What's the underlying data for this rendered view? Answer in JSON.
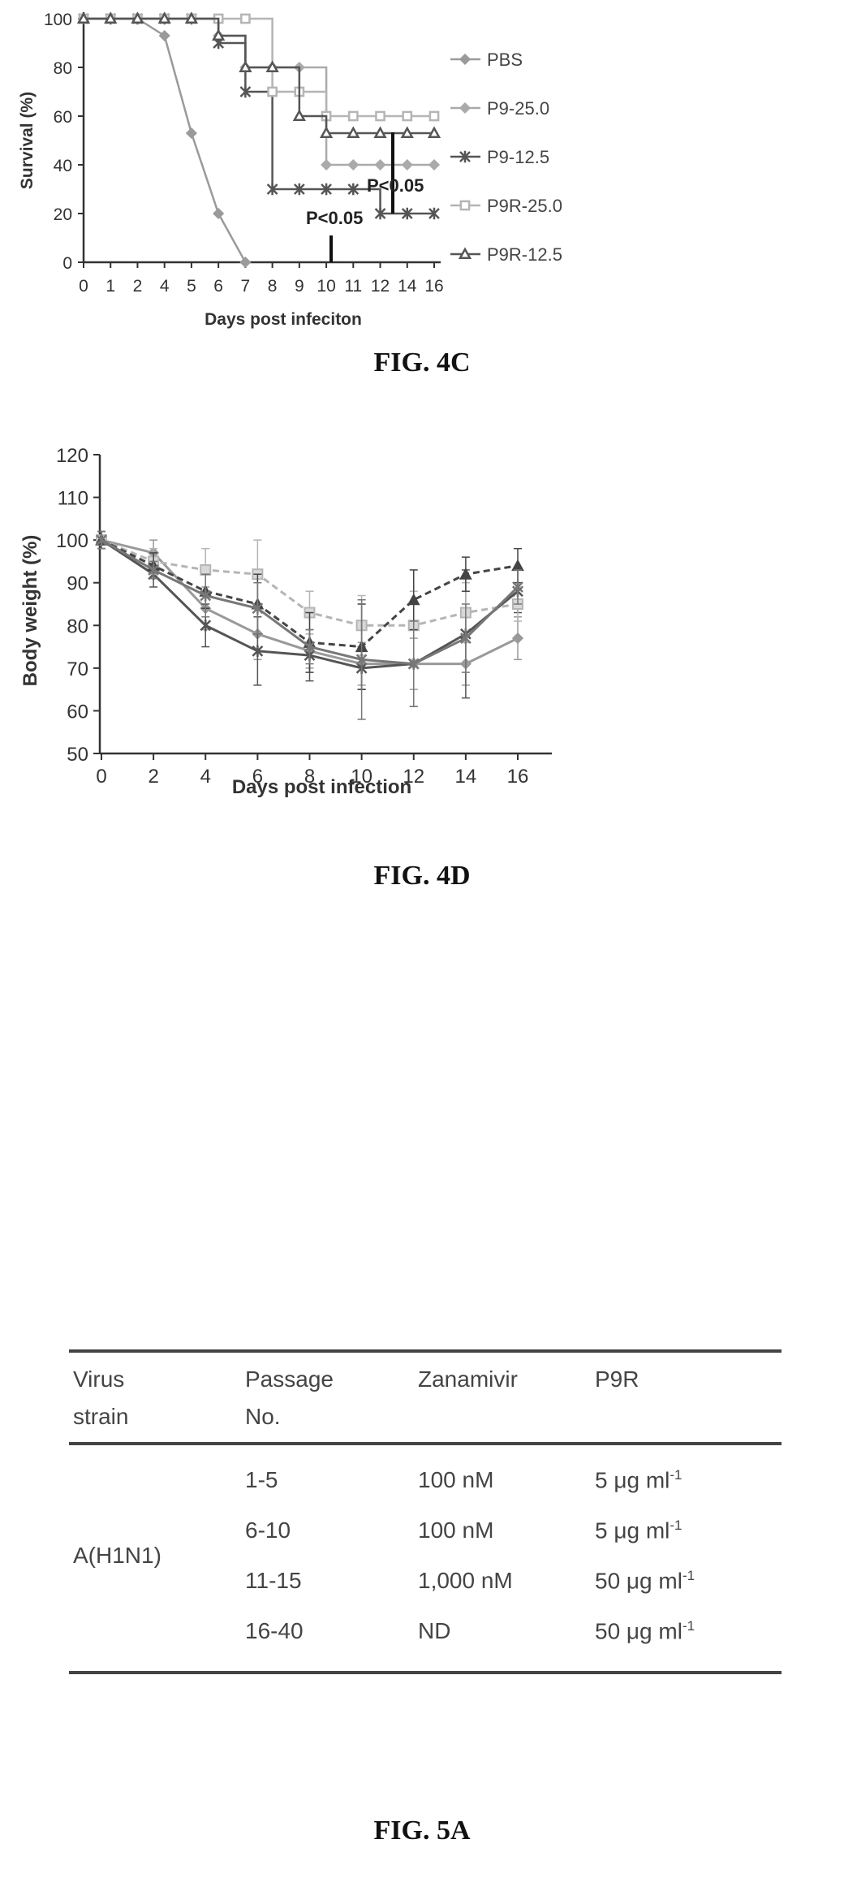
{
  "fig4c": {
    "caption": "FIG. 4C",
    "xlabel": "Days post infeciton",
    "ylabel": "Survival (%)",
    "annotations": [
      "P<0.05",
      "P<0.05"
    ]
  },
  "fig4d": {
    "caption": "FIG. 4D",
    "xlabel": "Days post infection",
    "ylabel": "Body weight (%)"
  },
  "fig5a": {
    "caption": "FIG. 5A",
    "headers": [
      [
        "Virus",
        "strain"
      ],
      [
        "Passage",
        "No."
      ],
      [
        "Zanamivir",
        ""
      ],
      [
        "P9R",
        ""
      ]
    ],
    "strain": "A(H1N1)",
    "rows": [
      {
        "passage": "1-5",
        "zanamivir": "100 nM",
        "p9r_value": "5 μg ml",
        "p9r_exp": "-1"
      },
      {
        "passage": "6-10",
        "zanamivir": "100 nM",
        "p9r_value": "5 μg ml",
        "p9r_exp": "-1"
      },
      {
        "passage": "11-15",
        "zanamivir": "1,000 nM",
        "p9r_value": "50 μg ml",
        "p9r_exp": "-1"
      },
      {
        "passage": "16-40",
        "zanamivir": "ND",
        "p9r_value": "50 μg ml",
        "p9r_exp": "-1"
      }
    ]
  },
  "chart_data": [
    {
      "type": "line",
      "xlabel": "Days post infeciton",
      "ylabel": "Survival (%)",
      "x_ticks": [
        "0",
        "1",
        "2",
        "4",
        "5",
        "6",
        "7",
        "8",
        "9",
        "10",
        "11",
        "12",
        "14",
        "16"
      ],
      "ylim": [
        0,
        100
      ],
      "y_ticks": [
        0,
        20,
        40,
        60,
        80,
        100
      ],
      "legend_position": "right",
      "series": [
        {
          "name": "PBS",
          "marker": "diamond",
          "color": "#9a9a9a",
          "values": [
            100,
            100,
            100,
            93,
            53,
            20,
            0,
            null,
            null,
            null,
            null,
            null,
            null,
            null
          ]
        },
        {
          "name": "P9-25.0",
          "marker": "diamond",
          "color": "#aaaaaa",
          "values": [
            100,
            100,
            100,
            100,
            100,
            93,
            80,
            80,
            80,
            40,
            40,
            40,
            40,
            40
          ]
        },
        {
          "name": "P9-12.5",
          "marker": "star",
          "color": "#555555",
          "values": [
            100,
            100,
            100,
            100,
            100,
            90,
            70,
            30,
            30,
            30,
            30,
            20,
            20,
            20
          ]
        },
        {
          "name": "P9R-25.0",
          "marker": "square",
          "color": "#b5b5b5",
          "values": [
            100,
            100,
            100,
            100,
            100,
            100,
            100,
            70,
            70,
            60,
            60,
            60,
            60,
            60
          ]
        },
        {
          "name": "P9R-12.5",
          "marker": "triangle",
          "color": "#555555",
          "values": [
            100,
            100,
            100,
            100,
            100,
            93,
            80,
            80,
            60,
            53,
            53,
            53,
            53,
            53
          ]
        }
      ],
      "annotations": [
        "P<0.05",
        "P<0.05"
      ]
    },
    {
      "type": "line",
      "xlabel": "Days post infection",
      "ylabel": "Body weight (%)",
      "x": [
        0,
        2,
        4,
        6,
        8,
        10,
        12,
        14,
        16
      ],
      "ylim": [
        50,
        120
      ],
      "y_ticks": [
        50,
        60,
        70,
        80,
        90,
        100,
        110,
        120
      ],
      "error_bars": true,
      "series": [
        {
          "marker": "diamond",
          "style": "solid",
          "color": "#999999",
          "values": [
            100,
            97,
            84,
            78,
            74,
            71,
            71,
            71,
            77
          ],
          "err": [
            2,
            3,
            5,
            6,
            4,
            5,
            6,
            5,
            5
          ]
        },
        {
          "marker": "star",
          "style": "solid",
          "color": "#555555",
          "values": [
            100,
            92,
            80,
            74,
            73,
            70,
            71,
            78,
            88
          ],
          "err": [
            2,
            3,
            5,
            8,
            6,
            5,
            10,
            15,
            5
          ]
        },
        {
          "marker": "square",
          "style": "dashed",
          "color": "#b5b5b5",
          "values": [
            100,
            95,
            93,
            92,
            83,
            80,
            80,
            83,
            85
          ],
          "err": [
            2,
            3,
            5,
            8,
            5,
            7,
            8,
            7,
            4
          ]
        },
        {
          "marker": "triangle",
          "style": "dashed",
          "color": "#444444",
          "values": [
            100,
            94,
            88,
            85,
            76,
            75,
            86,
            92,
            94
          ],
          "err": [
            2,
            3,
            4,
            7,
            7,
            10,
            7,
            4,
            4
          ]
        },
        {
          "marker": "star",
          "style": "solid",
          "color": "#777777",
          "values": [
            100,
            93,
            87,
            84,
            75,
            72,
            71,
            77,
            89
          ],
          "err": [
            2,
            2,
            5,
            6,
            4,
            14,
            10,
            8,
            4
          ]
        }
      ]
    }
  ]
}
